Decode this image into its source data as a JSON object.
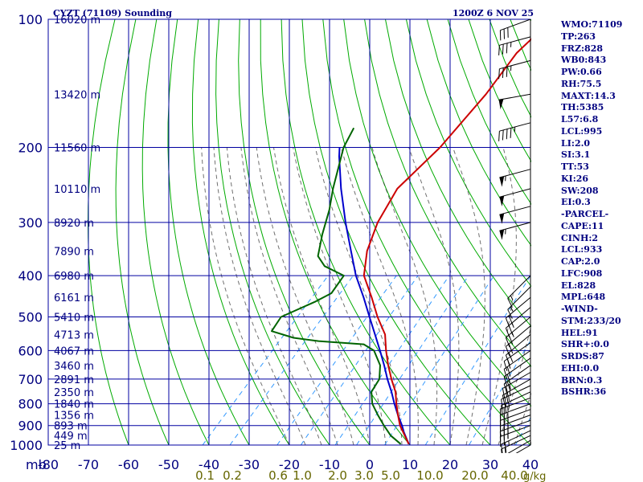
{
  "header": {
    "station": "CYZT (71109) Sounding",
    "datetime": "1200Z  6 NOV 25"
  },
  "colors": {
    "text": "#000080",
    "grid": "#0000a0",
    "dry_adiabat": "#00aa00",
    "moist_adiabat": "#333333",
    "mixing_ratio": "#3399ff",
    "temperature": "#cc0000",
    "dewpoint": "#006400",
    "parcel": "#0000cc",
    "mixing_labels": "#666600"
  },
  "chart_data": {
    "type": "skew-t",
    "x_unit_label": "mb",
    "y_scale": "log-pressure",
    "ylim": [
      1000,
      100
    ],
    "xlim": [
      -80,
      40
    ],
    "pressure_ticks": [
      100,
      200,
      300,
      400,
      500,
      600,
      700,
      800,
      900,
      1000
    ],
    "temperature_ticks": [
      -80,
      -70,
      -60,
      -50,
      -40,
      -30,
      -20,
      -10,
      0,
      10,
      20,
      30,
      40
    ],
    "height_labels": [
      {
        "p": 100,
        "label": "16020 m"
      },
      {
        "p": 150,
        "label": "13420 m"
      },
      {
        "p": 200,
        "label": "11560 m"
      },
      {
        "p": 250,
        "label": "10110 m"
      },
      {
        "p": 300,
        "label": "8920 m"
      },
      {
        "p": 350,
        "label": "7890 m"
      },
      {
        "p": 400,
        "label": "6980 m"
      },
      {
        "p": 450,
        "label": "6161 m"
      },
      {
        "p": 500,
        "label": "5410 m"
      },
      {
        "p": 550,
        "label": "4713 m"
      },
      {
        "p": 600,
        "label": "4067 m"
      },
      {
        "p": 650,
        "label": "3460 m"
      },
      {
        "p": 700,
        "label": "2891 m"
      },
      {
        "p": 750,
        "label": "2350 m"
      },
      {
        "p": 800,
        "label": "1840 m"
      },
      {
        "p": 850,
        "label": "1356 m"
      },
      {
        "p": 900,
        "label": "893 m"
      },
      {
        "p": 950,
        "label": "449 m"
      },
      {
        "p": 1000,
        "label": "25 m"
      }
    ],
    "mixing_ratio_labels": [
      "0.1",
      "0.2",
      "0.6",
      "1.0",
      "2.0",
      "3.0",
      "5.0",
      "10.0",
      "20.0",
      "40.0"
    ],
    "mixing_ratio_unit": "g/kg",
    "temperature_profile": [
      {
        "p": 995,
        "t": 9.5
      },
      {
        "p": 950,
        "t": 6.5
      },
      {
        "p": 900,
        "t": 3
      },
      {
        "p": 850,
        "t": 0
      },
      {
        "p": 800,
        "t": -3
      },
      {
        "p": 750,
        "t": -6
      },
      {
        "p": 700,
        "t": -10
      },
      {
        "p": 650,
        "t": -14
      },
      {
        "p": 600,
        "t": -18
      },
      {
        "p": 550,
        "t": -22
      },
      {
        "p": 500,
        "t": -28
      },
      {
        "p": 450,
        "t": -34
      },
      {
        "p": 400,
        "t": -41
      },
      {
        "p": 350,
        "t": -46
      },
      {
        "p": 300,
        "t": -50
      },
      {
        "p": 250,
        "t": -53
      },
      {
        "p": 200,
        "t": -52
      },
      {
        "p": 150,
        "t": -53
      },
      {
        "p": 120,
        "t": -55
      },
      {
        "p": 100,
        "t": -54
      }
    ],
    "dewpoint_profile": [
      {
        "p": 995,
        "t": 7.5
      },
      {
        "p": 950,
        "t": 3
      },
      {
        "p": 900,
        "t": -1
      },
      {
        "p": 850,
        "t": -5
      },
      {
        "p": 800,
        "t": -9
      },
      {
        "p": 750,
        "t": -12
      },
      {
        "p": 700,
        "t": -13
      },
      {
        "p": 650,
        "t": -16
      },
      {
        "p": 600,
        "t": -21
      },
      {
        "p": 580,
        "t": -25
      },
      {
        "p": 570,
        "t": -37
      },
      {
        "p": 560,
        "t": -44
      },
      {
        "p": 540,
        "t": -51
      },
      {
        "p": 500,
        "t": -52
      },
      {
        "p": 460,
        "t": -47
      },
      {
        "p": 440,
        "t": -45
      },
      {
        "p": 400,
        "t": -46
      },
      {
        "p": 380,
        "t": -53
      },
      {
        "p": 360,
        "t": -57
      },
      {
        "p": 320,
        "t": -61
      },
      {
        "p": 280,
        "t": -65
      },
      {
        "p": 250,
        "t": -69
      },
      {
        "p": 200,
        "t": -76
      },
      {
        "p": 180,
        "t": -78
      }
    ],
    "parcel_profile": [
      {
        "p": 995,
        "t": 9.5
      },
      {
        "p": 933,
        "t": 5.5
      },
      {
        "p": 900,
        "t": 3.5
      },
      {
        "p": 850,
        "t": 0
      },
      {
        "p": 800,
        "t": -3.5
      },
      {
        "p": 750,
        "t": -7
      },
      {
        "p": 700,
        "t": -11
      },
      {
        "p": 650,
        "t": -15
      },
      {
        "p": 600,
        "t": -19.5
      },
      {
        "p": 550,
        "t": -24.5
      },
      {
        "p": 500,
        "t": -30
      },
      {
        "p": 450,
        "t": -36
      },
      {
        "p": 400,
        "t": -43
      },
      {
        "p": 350,
        "t": -50
      },
      {
        "p": 300,
        "t": -58
      },
      {
        "p": 250,
        "t": -67
      },
      {
        "p": 210,
        "t": -75
      },
      {
        "p": 200,
        "t": -77
      }
    ],
    "wind_profile": [
      {
        "p": 1000,
        "dir": 240,
        "spd": 10
      },
      {
        "p": 975,
        "dir": 240,
        "spd": 15
      },
      {
        "p": 950,
        "dir": 245,
        "spd": 20
      },
      {
        "p": 925,
        "dir": 245,
        "spd": 25
      },
      {
        "p": 900,
        "dir": 250,
        "spd": 25
      },
      {
        "p": 875,
        "dir": 250,
        "spd": 30
      },
      {
        "p": 850,
        "dir": 250,
        "spd": 30
      },
      {
        "p": 825,
        "dir": 250,
        "spd": 30
      },
      {
        "p": 800,
        "dir": 250,
        "spd": 30
      },
      {
        "p": 775,
        "dir": 250,
        "spd": 25
      },
      {
        "p": 750,
        "dir": 245,
        "spd": 25
      },
      {
        "p": 725,
        "dir": 245,
        "spd": 25
      },
      {
        "p": 700,
        "dir": 240,
        "spd": 25
      },
      {
        "p": 675,
        "dir": 240,
        "spd": 25
      },
      {
        "p": 650,
        "dir": 235,
        "spd": 20
      },
      {
        "p": 625,
        "dir": 235,
        "spd": 20
      },
      {
        "p": 600,
        "dir": 235,
        "spd": 20
      },
      {
        "p": 575,
        "dir": 235,
        "spd": 20
      },
      {
        "p": 550,
        "dir": 230,
        "spd": 20
      },
      {
        "p": 525,
        "dir": 230,
        "spd": 20
      },
      {
        "p": 500,
        "dir": 230,
        "spd": 25
      },
      {
        "p": 475,
        "dir": 230,
        "spd": 25
      },
      {
        "p": 450,
        "dir": 230,
        "spd": 20
      },
      {
        "p": 425,
        "dir": 225,
        "spd": 15
      },
      {
        "p": 400,
        "dir": 225,
        "spd": 15
      },
      {
        "p": 300,
        "dir": 255,
        "spd": 55
      },
      {
        "p": 275,
        "dir": 255,
        "spd": 50
      },
      {
        "p": 250,
        "dir": 255,
        "spd": 50
      },
      {
        "p": 225,
        "dir": 255,
        "spd": 55
      },
      {
        "p": 175,
        "dir": 255,
        "spd": 45
      },
      {
        "p": 150,
        "dir": 260,
        "spd": 50
      },
      {
        "p": 125,
        "dir": 255,
        "spd": 35
      },
      {
        "p": 110,
        "dir": 255,
        "spd": 35
      },
      {
        "p": 100,
        "dir": 250,
        "spd": 30
      }
    ]
  },
  "indices": [
    "WMO:71109",
    "TP:263",
    "FRZ:828",
    "WB0:843",
    "PW:0.66",
    "RH:75.5",
    "MAXT:14.3",
    "TH:5385",
    "L57:6.8",
    "LCL:995",
    "LI:2.0",
    "SI:3.1",
    "TT:53",
    "KI:26",
    "SW:208",
    "EI:0.3",
    "-PARCEL-",
    "CAPE:11",
    "CINH:2",
    "LCL:933",
    "CAP:2.0",
    "LFC:908",
    "EL:828",
    "MPL:648",
    "-WIND-",
    "STM:233/20",
    "HEL:91",
    "SHR+:0.0",
    "SRDS:87",
    "EHI:0.0",
    "BRN:0.3",
    "BSHR:36"
  ]
}
